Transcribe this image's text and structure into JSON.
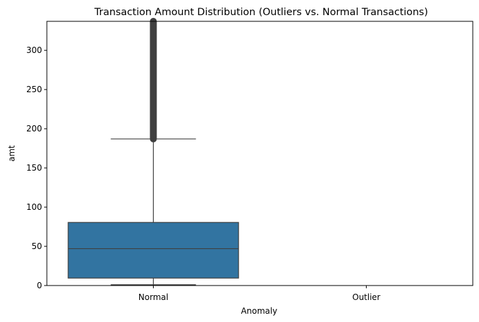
{
  "chart_data": {
    "type": "box",
    "title": "Transaction Amount Distribution (Outliers vs. Normal Transactions)",
    "xlabel": "Anomaly",
    "ylabel": "amt",
    "categories": [
      "Normal",
      "Outlier"
    ],
    "ylim": [
      0,
      337
    ],
    "yticks": [
      0,
      50,
      100,
      150,
      200,
      250,
      300
    ],
    "grid": false,
    "boxes": [
      {
        "category": "Normal",
        "whisker_low": 1,
        "q1": 9.5,
        "median": 47,
        "q3": 80.5,
        "whisker_high": 187,
        "outliers_from": 187,
        "outliers_to": 337
      }
    ],
    "colors": {
      "box_fill": "#3274a1",
      "box_edge": "#3f3f3f",
      "outlier": "#3f3f3f"
    }
  }
}
